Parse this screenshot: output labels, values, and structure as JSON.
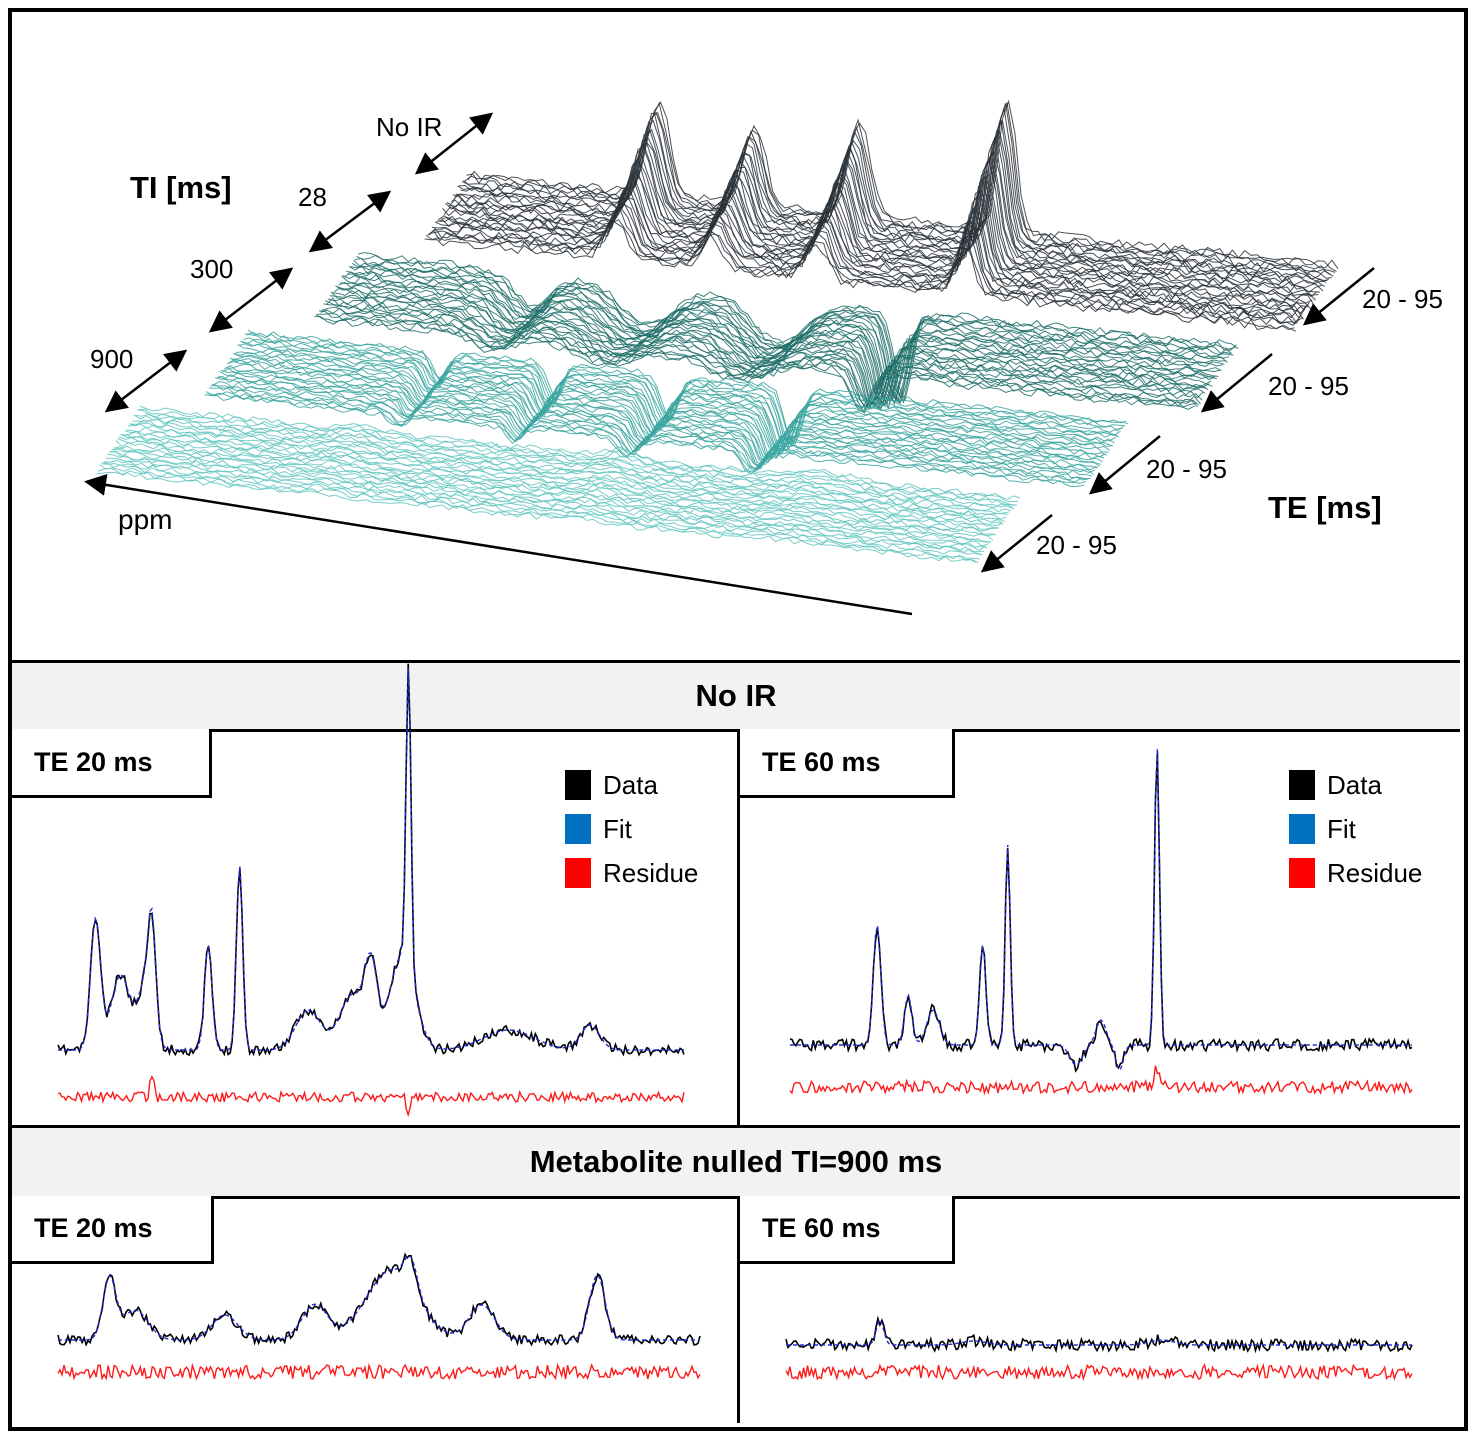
{
  "top_panel": {
    "ti_axis_label": "TI [ms]",
    "te_axis_label": "TE [ms]",
    "ppm_axis_label": "ppm",
    "ti_values": [
      "No IR",
      "28",
      "300",
      "900"
    ],
    "te_range_labels": [
      "20 - 95",
      "20 - 95",
      "20 - 95",
      "20 - 95"
    ],
    "colors": [
      "#2a3138",
      "#1f6e6a",
      "#3aa5a0",
      "#62c6c0"
    ]
  },
  "section_no_ir": {
    "title": "No IR",
    "left": {
      "label": "TE 20 ms"
    },
    "right": {
      "label": "TE 60 ms"
    }
  },
  "section_nulled": {
    "title": "Metabolite nulled TI=900 ms",
    "left": {
      "label": "TE 20 ms"
    },
    "right": {
      "label": "TE 60 ms"
    }
  },
  "legend": {
    "items": [
      {
        "label": "Data",
        "color": "#000000"
      },
      {
        "label": "Fit",
        "color": "#0070c0"
      },
      {
        "label": "Residue",
        "color": "#ff0000"
      }
    ]
  }
}
